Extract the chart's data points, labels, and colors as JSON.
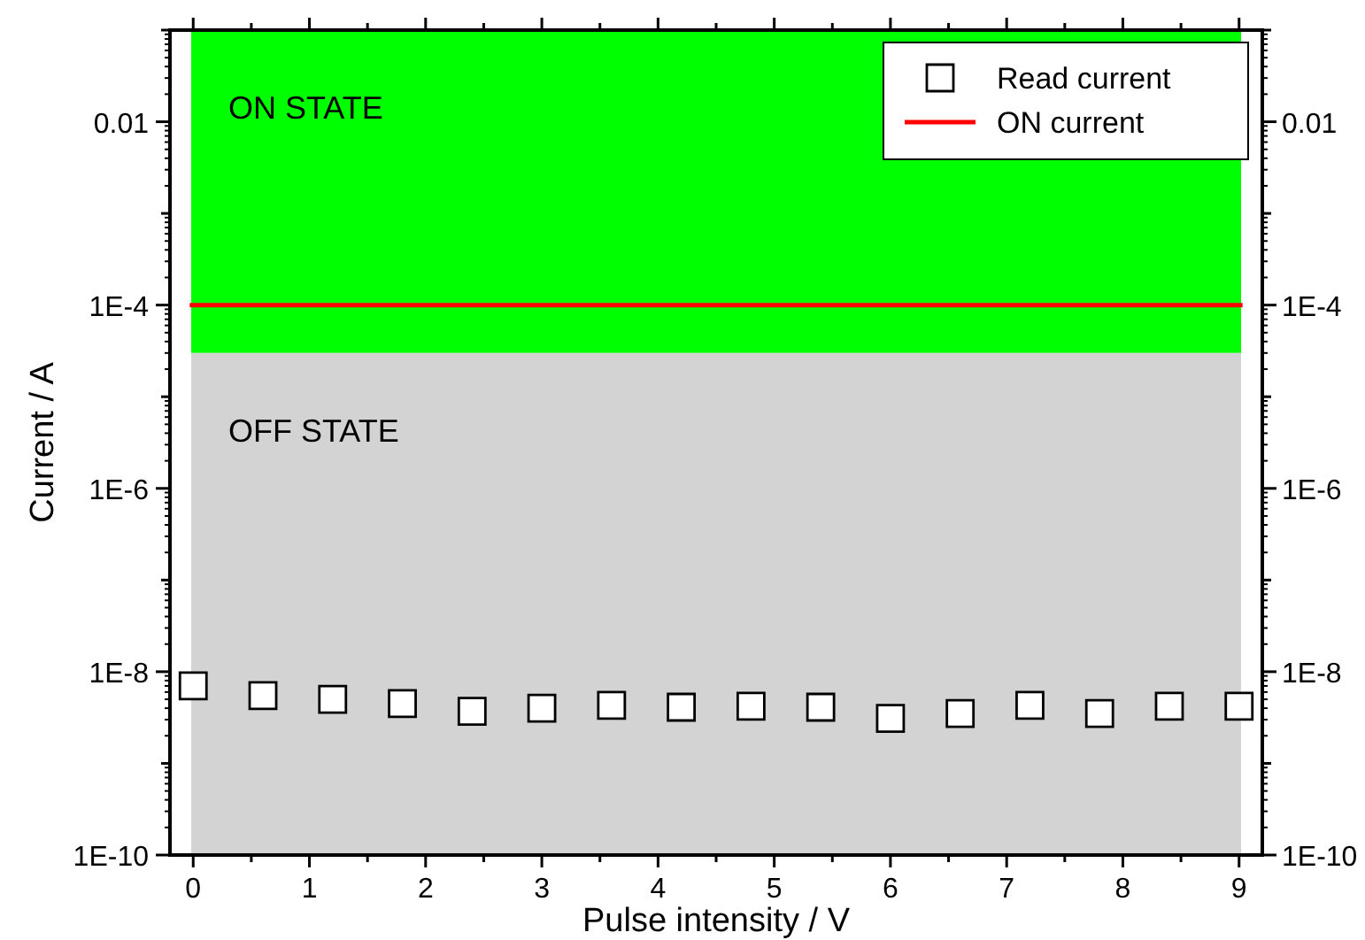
{
  "chart_data": {
    "type": "scatter",
    "xlabel": "Pulse intensity / V",
    "ylabel": "Current / A",
    "log": "y",
    "xlim": [
      -0.2,
      9.2
    ],
    "xticks": [
      0,
      {
        "value": 0.5,
        "label": null
      },
      1,
      {
        "value": 1.5,
        "label": null
      },
      2,
      {
        "value": 2.5,
        "label": null
      },
      3,
      {
        "value": 3.5,
        "label": null
      },
      4,
      {
        "value": 4.5,
        "label": null
      },
      5,
      {
        "value": 5.5,
        "label": null
      },
      6,
      {
        "value": 6.5,
        "label": null
      },
      7,
      {
        "value": 7.5,
        "label": null
      },
      8,
      {
        "value": 8.5,
        "label": null
      },
      9
    ],
    "ylim": [
      1e-10,
      0.1
    ],
    "yticks": [
      {
        "value": 1e-10,
        "label": "1E-10"
      },
      {
        "value": 1e-09,
        "label": null
      },
      {
        "value": 1e-08,
        "label": "1E-8"
      },
      {
        "value": 1e-07,
        "label": null
      },
      {
        "value": 1e-06,
        "label": "1E-6"
      },
      {
        "value": 1e-05,
        "label": null
      },
      {
        "value": 0.0001,
        "label": "1E-4"
      },
      {
        "value": 0.001,
        "label": null
      },
      {
        "value": 0.01,
        "label": "0.01"
      },
      {
        "value": 0.1,
        "label": null
      }
    ],
    "x": [
      0,
      0.6,
      1.2,
      1.8,
      2.4,
      3,
      3.6,
      4.2,
      4.8,
      5.4,
      6,
      6.6,
      7.2,
      7.8,
      8.4,
      9
    ],
    "series": [
      {
        "name": "Read current",
        "marker": "square",
        "color": "#000000",
        "values": [
          7e-09,
          5.5e-09,
          5e-09,
          4.5e-09,
          3.7e-09,
          4e-09,
          4.3e-09,
          4.1e-09,
          4.2e-09,
          4.1e-09,
          3.1e-09,
          3.5e-09,
          4.3e-09,
          3.5e-09,
          4.2e-09,
          4.2e-09
        ]
      },
      {
        "name": "ON current",
        "type": "line",
        "marker": "none",
        "color": "#ff0000",
        "x": [
          -0.03,
          9.03
        ],
        "values": [
          0.0001,
          0.0001
        ]
      }
    ],
    "bands": [
      {
        "axis": "y",
        "from": 3e-05,
        "to": 0.1,
        "label": "ON STATE",
        "color": "#00ff00"
      },
      {
        "axis": "y",
        "from": 1e-10,
        "to": 3e-05,
        "label": "OFF STATE",
        "color": "#d3d3d3"
      }
    ],
    "legend": "top right",
    "grid": false
  }
}
